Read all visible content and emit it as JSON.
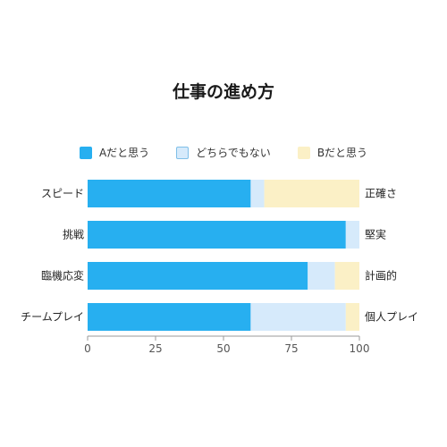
{
  "chart_data": {
    "type": "bar",
    "orientation": "horizontal-stacked-percent",
    "title": "仕事の進め方",
    "categories": [
      "スピード",
      "挑戦",
      "臨機応変",
      "チームプレイ"
    ],
    "right_labels": [
      "正確さ",
      "堅実",
      "計画的",
      "個人プレイ"
    ],
    "series": [
      {
        "name": "Aだと思う",
        "values": [
          60,
          95,
          81,
          60
        ],
        "color": "#27aff0"
      },
      {
        "name": "どちらでもない",
        "values": [
          5,
          5,
          10,
          35
        ],
        "color": "#d6eafb"
      },
      {
        "name": "Bだと思う",
        "values": [
          35,
          0,
          9,
          5
        ],
        "color": "#fbf0c6"
      }
    ],
    "xlim": [
      0,
      100
    ],
    "xticks": [
      0,
      25,
      50,
      75,
      100
    ],
    "legend_position": "top",
    "grid": false
  }
}
